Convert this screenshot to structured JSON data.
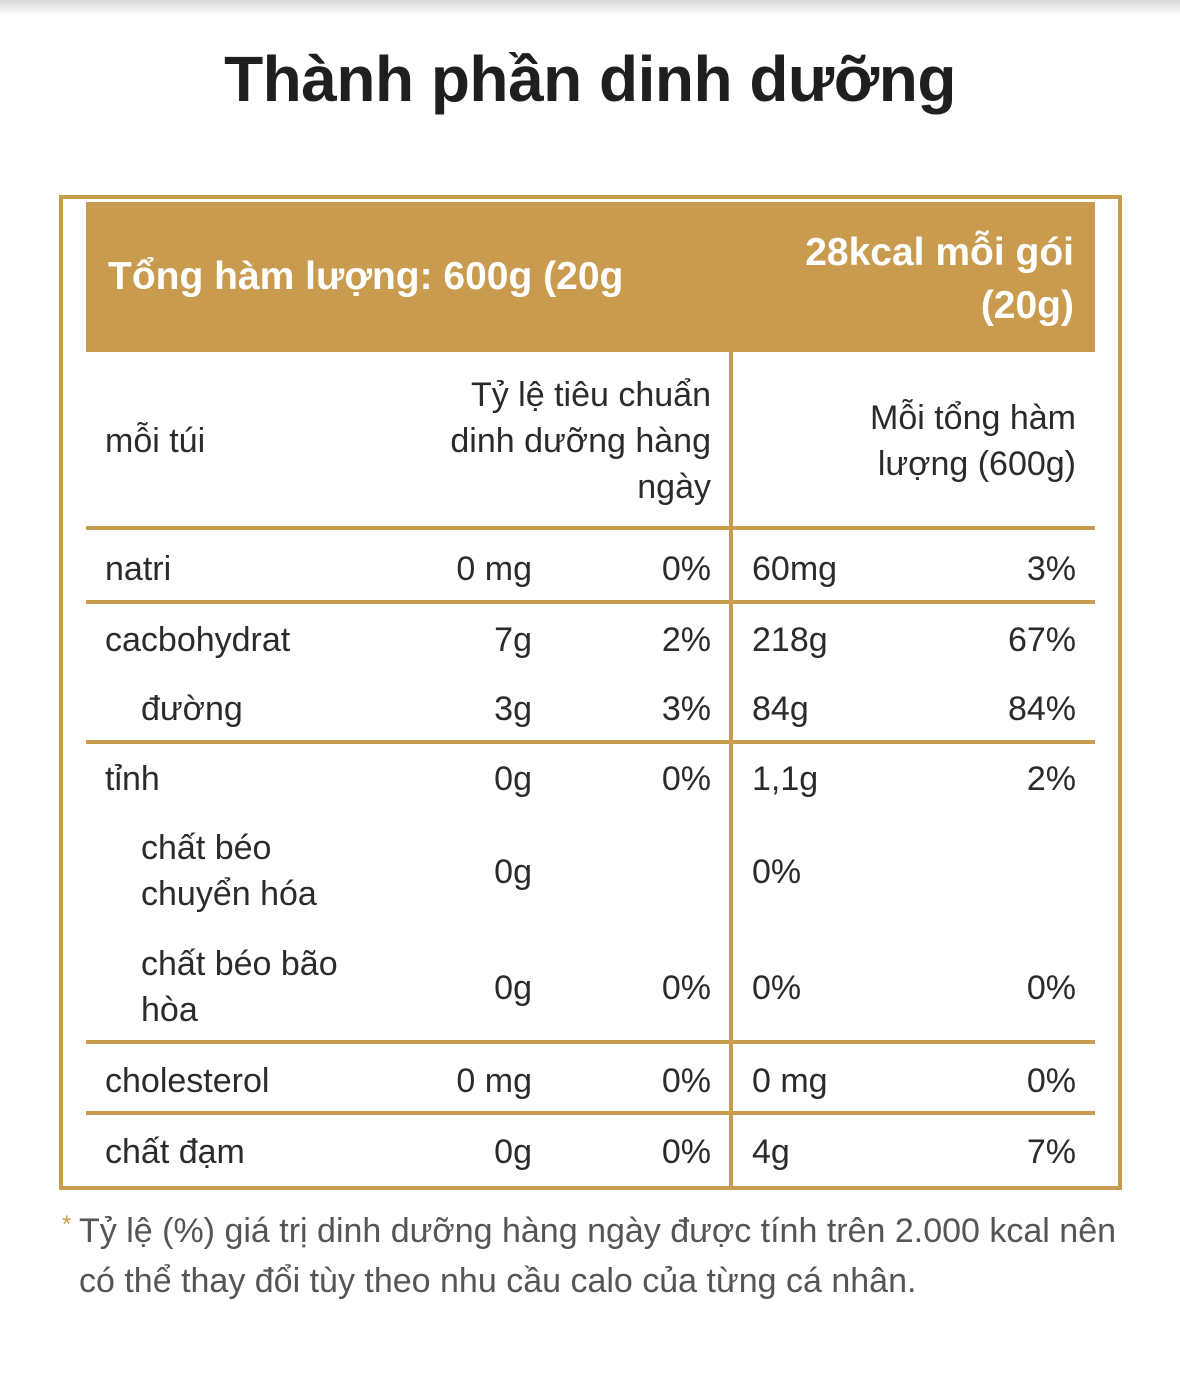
{
  "title": "Thành phần dinh dưỡng",
  "header": {
    "left": "Tổng hàm lượng: 600g (20g",
    "right_line1": "28kcal mỗi gói",
    "right_line2": "(20g)"
  },
  "columns": {
    "per_bag": "mỗi túi",
    "daily_ratio": "Tỷ lệ tiêu chuẩn dinh dưỡng hàng ngày",
    "per_total": "Mỗi tổng hàm lượng (600g)"
  },
  "rows": [
    {
      "name": "natri",
      "amount": "0 mg",
      "pct": "0%",
      "total_amount": "60mg",
      "total_pct": "3%"
    },
    {
      "name": "cacbohydrat",
      "amount": "7g",
      "pct": "2%",
      "total_amount": "218g",
      "total_pct": "67%"
    },
    {
      "name": "đường",
      "amount": "3g",
      "pct": "3%",
      "total_amount": "84g",
      "total_pct": "84%"
    },
    {
      "name": "tỉnh",
      "amount": "0g",
      "pct": "0%",
      "total_amount": "1,1g",
      "total_pct": "2%"
    },
    {
      "name": "chất béo chuyển hóa",
      "amount": "0g",
      "pct": "",
      "total_amount": "0%",
      "total_pct": ""
    },
    {
      "name": "chất béo bão hòa",
      "amount": "0g",
      "pct": "0%",
      "total_amount": "0%",
      "total_pct": "0%"
    },
    {
      "name": "cholesterol",
      "amount": "0 mg",
      "pct": "0%",
      "total_amount": "0 mg",
      "total_pct": "0%"
    },
    {
      "name": "chất đạm",
      "amount": "0g",
      "pct": "0%",
      "total_amount": "4g",
      "total_pct": "7%"
    }
  ],
  "footnote": {
    "star": "*",
    "text": "Tỷ lệ (%) giá trị dinh dưỡng hàng ngày được tính trên 2.000 kcal nên có thể thay đổi tùy theo nhu cầu calo của từng cá nhân."
  },
  "colors": {
    "accent": "#c89b4e",
    "text": "#2b2b2b",
    "footnote": "#555555"
  }
}
